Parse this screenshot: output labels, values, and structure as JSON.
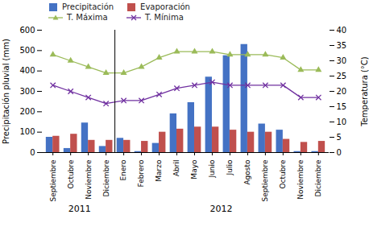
{
  "chart_data": {
    "type": "bar",
    "categories": [
      "Septiembre",
      "Octubre",
      "Noviembre",
      "Diciembre",
      "Enero",
      "Febrero",
      "Marzo",
      "Abril",
      "Mayo",
      "Junio",
      "Julio",
      "Agosto",
      "Septiembre",
      "Octubre",
      "Noviembre",
      "Diciembre"
    ],
    "groups": [
      {
        "label": "2011",
        "start": 0,
        "end": 3
      },
      {
        "label": "2012",
        "start": 4,
        "end": 15
      }
    ],
    "series": [
      {
        "name": "Precipitación",
        "type": "bar",
        "color": "#4472C4",
        "values": [
          75,
          20,
          145,
          30,
          70,
          5,
          45,
          190,
          245,
          370,
          475,
          530,
          140,
          110,
          5,
          5
        ]
      },
      {
        "name": "Evaporación",
        "type": "bar",
        "color": "#C0504D",
        "values": [
          80,
          90,
          60,
          60,
          60,
          55,
          100,
          115,
          125,
          125,
          110,
          100,
          100,
          65,
          50,
          55
        ]
      },
      {
        "name": "T. Máxima",
        "type": "line",
        "axis": "y2",
        "color": "#9BBB59",
        "marker": "triangle",
        "values": [
          32,
          30,
          28,
          26,
          26,
          28,
          31,
          33,
          33,
          33,
          32,
          32,
          32,
          31,
          27,
          27
        ]
      },
      {
        "name": "T. Mínima",
        "type": "line",
        "axis": "y2",
        "color": "#7030A0",
        "marker": "x",
        "values": [
          22,
          20,
          18,
          16,
          17,
          17,
          19,
          21,
          22,
          23,
          22,
          22,
          22,
          22,
          18,
          18
        ]
      }
    ],
    "ylabel": "Precipitación pluvial (mm)",
    "y2label": "Temperatura (°C)",
    "ylim": [
      0,
      600
    ],
    "yticks": [
      0,
      100,
      200,
      300,
      400,
      500,
      600
    ],
    "y2lim": [
      0,
      40
    ],
    "y2ticks": [
      0,
      5,
      10,
      15,
      20,
      25,
      30,
      35,
      40
    ],
    "grid": false,
    "legend": "top"
  }
}
